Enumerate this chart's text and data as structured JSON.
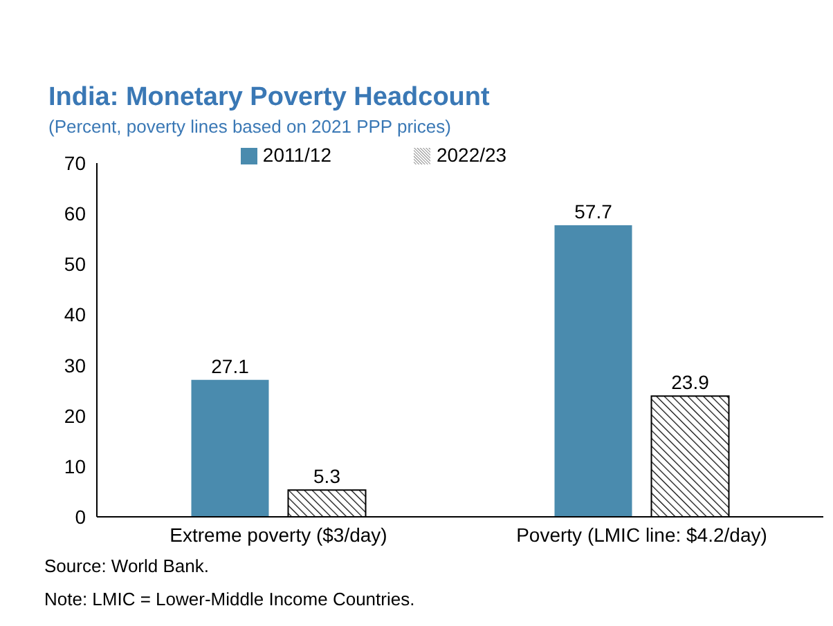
{
  "chart_data": {
    "type": "bar",
    "title": "India: Monetary Poverty Headcount",
    "subtitle": "(Percent, poverty lines based on 2021 PPP prices)",
    "categories": [
      "Extreme poverty ($3/day)",
      "Poverty (LMIC line: $4.2/day)"
    ],
    "series": [
      {
        "name": "2011/12",
        "color": "#4a8bae",
        "values": [
          27.1,
          57.7
        ]
      },
      {
        "name": "2022/23",
        "color": "#000000",
        "values": [
          5.3,
          23.9
        ]
      }
    ],
    "ylim": [
      0,
      70
    ],
    "yticks": [
      0,
      10,
      20,
      30,
      40,
      50,
      60,
      70
    ],
    "grid": false,
    "legend": "top",
    "data_labels": true,
    "annotations": [
      "Source: World Bank.",
      "Note: LMIC = Lower-Middle Income Countries."
    ]
  }
}
